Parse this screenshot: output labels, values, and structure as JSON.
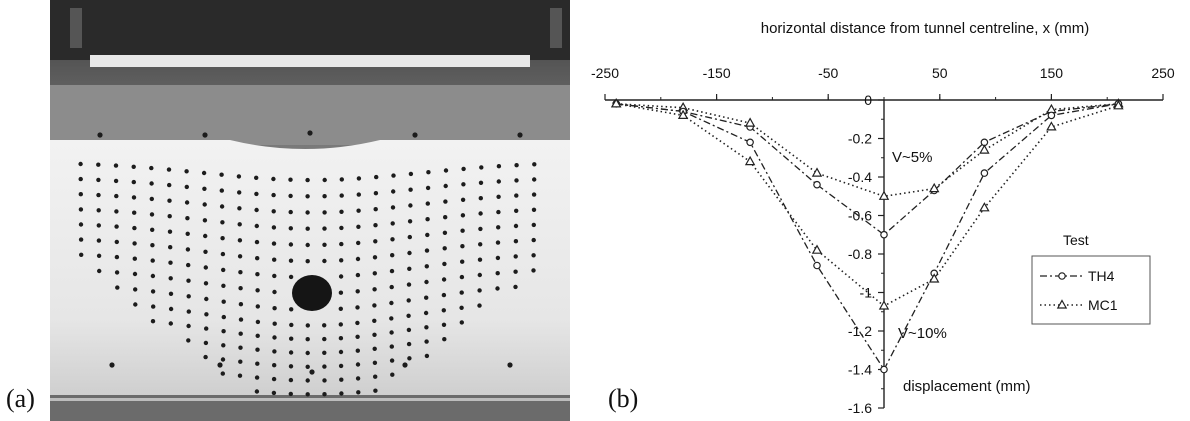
{
  "panels": {
    "a_label": "(a)",
    "b_label": "(b)"
  },
  "chart_data": {
    "type": "line",
    "title": "",
    "xlabel": "horizontal distance from tunnel centreline, x (mm)",
    "ylabel": "displacement (mm)",
    "xlim": [
      -250,
      250
    ],
    "ylim": [
      -1.6,
      0
    ],
    "x_ticks": [
      "-250",
      "-150",
      "-50",
      "50",
      "150",
      "250"
    ],
    "y_ticks": [
      "0",
      "-0.2",
      "-0.4",
      "-0.6",
      "-0.8",
      "-1",
      "-1.2",
      "-1.4",
      "-1.6"
    ],
    "legend": {
      "title": "Test",
      "position": "right"
    },
    "annotations": [
      "V~5%",
      "V~10%"
    ],
    "series": [
      {
        "name": "TH4",
        "marker": "circle",
        "style": "dash-dot",
        "group": "V~5%",
        "points": [
          [
            -240,
            -0.02
          ],
          [
            -180,
            -0.06
          ],
          [
            -120,
            -0.14
          ],
          [
            -60,
            -0.44
          ],
          [
            0,
            -0.7
          ],
          [
            45,
            -0.47
          ],
          [
            90,
            -0.22
          ],
          [
            150,
            -0.06
          ],
          [
            210,
            -0.02
          ]
        ]
      },
      {
        "name": "MC1",
        "marker": "triangle",
        "style": "dotted",
        "group": "V~5%",
        "points": [
          [
            -240,
            -0.02
          ],
          [
            -180,
            -0.04
          ],
          [
            -120,
            -0.12
          ],
          [
            -60,
            -0.38
          ],
          [
            0,
            -0.5
          ],
          [
            45,
            -0.46
          ],
          [
            90,
            -0.26
          ],
          [
            150,
            -0.05
          ],
          [
            210,
            -0.02
          ]
        ]
      },
      {
        "name": "TH4",
        "marker": "circle",
        "style": "dash-dot",
        "group": "V~10%",
        "points": [
          [
            -240,
            -0.02
          ],
          [
            -180,
            -0.06
          ],
          [
            -120,
            -0.22
          ],
          [
            -60,
            -0.86
          ],
          [
            0,
            -1.4
          ],
          [
            45,
            -0.9
          ],
          [
            90,
            -0.38
          ],
          [
            150,
            -0.08
          ],
          [
            210,
            -0.02
          ]
        ]
      },
      {
        "name": "MC1",
        "marker": "triangle",
        "style": "dotted",
        "group": "V~10%",
        "points": [
          [
            -240,
            -0.02
          ],
          [
            -180,
            -0.08
          ],
          [
            -120,
            -0.32
          ],
          [
            -60,
            -0.78
          ],
          [
            0,
            -1.07
          ],
          [
            45,
            -0.93
          ],
          [
            90,
            -0.56
          ],
          [
            150,
            -0.14
          ],
          [
            210,
            -0.03
          ]
        ]
      }
    ]
  }
}
